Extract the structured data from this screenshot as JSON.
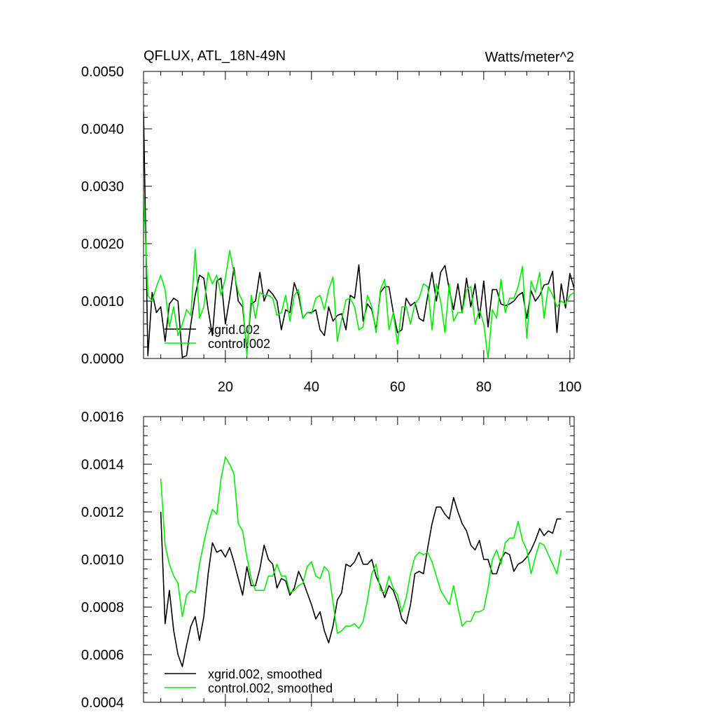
{
  "chart_data": [
    {
      "type": "line",
      "title": "QFLUX, ATL_18N-49N",
      "units_label": "Watts/meter^2",
      "xlabel": "",
      "ylabel": "",
      "xlim": [
        1,
        101
      ],
      "ylim": [
        0.0,
        0.005
      ],
      "x_tick_values": [
        20,
        40,
        60,
        80,
        100
      ],
      "x_tick_labels": [
        "20",
        "40",
        "60",
        "80",
        "100"
      ],
      "y_tick_values": [
        0.0,
        0.001,
        0.002,
        0.003,
        0.004,
        0.005
      ],
      "y_tick_labels": [
        "0.0000",
        "0.0010",
        "0.0020",
        "0.0030",
        "0.0040",
        "0.0050"
      ],
      "legend_position": "bottom-left",
      "grid": false,
      "x": [
        1,
        2,
        3,
        4,
        5,
        6,
        7,
        8,
        9,
        10,
        11,
        12,
        13,
        14,
        15,
        16,
        17,
        18,
        19,
        20,
        21,
        22,
        23,
        24,
        25,
        26,
        27,
        28,
        29,
        30,
        31,
        32,
        33,
        34,
        35,
        36,
        37,
        38,
        39,
        40,
        41,
        42,
        43,
        44,
        45,
        46,
        47,
        48,
        49,
        50,
        51,
        52,
        53,
        54,
        55,
        56,
        57,
        58,
        59,
        60,
        61,
        62,
        63,
        64,
        65,
        66,
        67,
        68,
        69,
        70,
        71,
        72,
        73,
        74,
        75,
        76,
        77,
        78,
        79,
        80,
        81,
        82,
        83,
        84,
        85,
        86,
        87,
        88,
        89,
        90,
        91,
        92,
        93,
        94,
        95,
        96,
        97,
        98,
        99,
        100,
        101
      ],
      "series": [
        {
          "name": "xgrid.002",
          "color": "#000000",
          "values": [
            0.0043,
            5e-05,
            0.00115,
            0.0008,
            0.0009,
            0.0003,
            0.00095,
            0.00105,
            0.001,
            2e-05,
            5e-05,
            0.0006,
            0.0011,
            0.00145,
            0.0014,
            0.00085,
            0.0004,
            0.00135,
            0.0014,
            0.0006,
            0.00105,
            0.00158,
            0.001,
            0.0009,
            0.00015,
            0.00095,
            0.001,
            0.0015,
            0.001,
            0.0012,
            0.00112,
            0.001,
            0.0005,
            0.00085,
            0.0008,
            0.00132,
            0.0011,
            0.0007,
            0.0008,
            0.0008,
            0.00085,
            0.0005,
            0.0004,
            0.0009,
            0.00065,
            0.00075,
            0.00078,
            0.0005,
            0.0011,
            0.00105,
            0.00163,
            0.00065,
            0.00095,
            0.00085,
            0.0005,
            0.00115,
            0.00125,
            0.00125,
            0.0008,
            0.00045,
            0.0005,
            0.00105,
            0.00092,
            0.00098,
            0.0007,
            0.00065,
            0.0011,
            0.0015,
            0.001,
            0.0015,
            0.00162,
            0.0012,
            0.00085,
            0.0013,
            0.0008,
            0.0014,
            0.0009,
            0.0013,
            0.0007,
            0.00135,
            0.00055,
            0.0012,
            0.0012,
            0.00095,
            0.00092,
            0.00095,
            0.001,
            0.0011,
            0.00115,
            0.0007,
            0.00118,
            0.001,
            0.0011,
            0.00128,
            0.0013,
            0.00152,
            0.00045,
            0.0013,
            0.00088,
            0.00148,
            0.00122
          ]
        },
        {
          "name": "control.002",
          "color": "#00ee00",
          "values": [
            0.0029,
            0.0011,
            0.001,
            0.00125,
            0.00145,
            0.0012,
            0.00055,
            0.0009,
            0.0004,
            0.0006,
            0.00085,
            0.00075,
            0.0019,
            0.0007,
            0.0009,
            0.0015,
            0.0013,
            0.00145,
            0.0011,
            0.0014,
            0.00188,
            0.0015,
            0.00115,
            0.001,
            5e-05,
            0.0011,
            0.0007,
            0.00115,
            0.0011,
            0.0011,
            0.00105,
            0.00075,
            0.0008,
            0.0011,
            0.00065,
            0.0011,
            0.0012,
            0.0007,
            0.0008,
            0.00078,
            0.00105,
            0.0011,
            0.00085,
            0.0012,
            0.00142,
            0.0003,
            0.00068,
            0.00102,
            0.00105,
            0.0009,
            0.0005,
            0.00055,
            0.0011,
            0.0009,
            0.00045,
            0.0012,
            0.00138,
            0.0005,
            0.0008,
            0.00025,
            0.0009,
            0.0009,
            0.0006,
            0.00095,
            0.00105,
            0.0013,
            0.00125,
            0.0005,
            0.0013,
            0.001,
            0.00045,
            0.0013,
            0.00065,
            0.0008,
            0.0008,
            0.0012,
            0.00125,
            0.0006,
            0.00085,
            0.0006,
            0.0,
            0.00085,
            0.0007,
            0.00138,
            0.0008,
            0.00105,
            0.00105,
            0.00125,
            0.0016,
            0.00035,
            0.00135,
            0.00115,
            0.0015,
            0.0007,
            0.00125,
            0.0011,
            0.0009,
            0.001,
            0.00095,
            0.0011,
            0.00115
          ]
        }
      ]
    },
    {
      "type": "line",
      "title": "",
      "xlabel": "",
      "ylabel": "",
      "xlim": [
        1,
        101
      ],
      "ylim": [
        0.0004,
        0.0016
      ],
      "x_tick_values": [
        20,
        40,
        60,
        80,
        100
      ],
      "x_tick_labels": [],
      "y_tick_values": [
        0.0004,
        0.0006,
        0.0008,
        0.001,
        0.0012,
        0.0014,
        0.0016
      ],
      "y_tick_labels": [
        "0.0004",
        "0.0006",
        "0.0008",
        "0.0010",
        "0.0012",
        "0.0014",
        "0.0016"
      ],
      "legend_position": "bottom-left",
      "grid": false,
      "x": [
        5,
        6,
        7,
        8,
        9,
        10,
        11,
        12,
        13,
        14,
        15,
        16,
        17,
        18,
        19,
        20,
        21,
        22,
        23,
        24,
        25,
        26,
        27,
        28,
        29,
        30,
        31,
        32,
        33,
        34,
        35,
        36,
        37,
        38,
        39,
        40,
        41,
        42,
        43,
        44,
        45,
        46,
        47,
        48,
        49,
        50,
        51,
        52,
        53,
        54,
        55,
        56,
        57,
        58,
        59,
        60,
        61,
        62,
        63,
        64,
        65,
        66,
        67,
        68,
        69,
        70,
        71,
        72,
        73,
        74,
        75,
        76,
        77,
        78,
        79,
        80,
        81,
        82,
        83,
        84,
        85,
        86,
        87,
        88,
        89,
        90,
        91,
        92,
        93,
        94,
        95,
        96,
        97,
        98
      ],
      "series": [
        {
          "name": "xgrid.002, smoothed",
          "color": "#000000",
          "values": [
            0.0012,
            0.00073,
            0.00087,
            0.0007,
            0.0006,
            0.00055,
            0.00064,
            0.00072,
            0.00076,
            0.00066,
            0.00076,
            0.00094,
            0.00107,
            0.00103,
            0.00104,
            0.00101,
            0.00105,
            0.00099,
            0.00092,
            0.00085,
            0.00097,
            0.00089,
            0.00089,
            0.00096,
            0.00106,
            0.001,
            0.00098,
            0.00088,
            0.00092,
            0.00091,
            0.00085,
            0.00088,
            0.00095,
            0.00091,
            0.00086,
            0.00081,
            0.00075,
            0.00078,
            0.0007,
            0.00065,
            0.00072,
            0.00083,
            0.00086,
            0.00098,
            0.00097,
            0.00099,
            0.00103,
            0.00098,
            0.00098,
            0.001,
            0.00093,
            0.00089,
            0.00084,
            0.00089,
            0.00087,
            0.00082,
            0.00075,
            0.00073,
            0.00081,
            0.00094,
            0.00095,
            0.00094,
            0.00105,
            0.00115,
            0.00122,
            0.00122,
            0.00119,
            0.00117,
            0.00126,
            0.0012,
            0.00115,
            0.00112,
            0.00106,
            0.00104,
            0.00108,
            0.001,
            0.001,
            0.00094,
            0.00094,
            0.001,
            0.00103,
            0.00102,
            0.00095,
            0.00098,
            0.00099,
            0.00101,
            0.00104,
            0.00108,
            0.00113,
            0.0011,
            0.00112,
            0.00111,
            0.00117,
            0.00117
          ]
        },
        {
          "name": "control.002, smoothed",
          "color": "#00ee00",
          "values": [
            0.00134,
            0.00106,
            0.00098,
            0.00093,
            0.0009,
            0.00076,
            0.00085,
            0.00087,
            0.00086,
            0.00098,
            0.00107,
            0.00115,
            0.00121,
            0.00119,
            0.00134,
            0.00143,
            0.0014,
            0.00136,
            0.00115,
            0.00112,
            0.00101,
            0.00092,
            0.00087,
            0.00087,
            0.00087,
            0.00093,
            0.00093,
            0.00098,
            0.00093,
            0.00093,
            0.00086,
            0.00087,
            0.00089,
            0.0009,
            0.00097,
            0.00099,
            0.00093,
            0.00092,
            0.00097,
            0.00095,
            0.00082,
            0.00069,
            0.0007,
            0.00072,
            0.00072,
            0.00073,
            0.00071,
            0.00074,
            0.00083,
            0.00094,
            0.00098,
            0.00087,
            0.00086,
            0.00093,
            0.00088,
            0.00085,
            0.00078,
            0.00084,
            0.00094,
            0.00101,
            0.00103,
            0.00102,
            0.00103,
            0.00099,
            0.00093,
            0.00087,
            0.00084,
            0.00081,
            0.00089,
            0.0008,
            0.00072,
            0.00074,
            0.00074,
            0.00078,
            0.00078,
            0.00079,
            0.00088,
            0.001,
            0.00104,
            0.00098,
            0.00107,
            0.00109,
            0.00109,
            0.00116,
            0.00108,
            0.00104,
            0.00094,
            0.00101,
            0.00107,
            0.00106,
            0.00102,
            0.00098,
            0.00094,
            0.00104
          ]
        }
      ]
    }
  ]
}
